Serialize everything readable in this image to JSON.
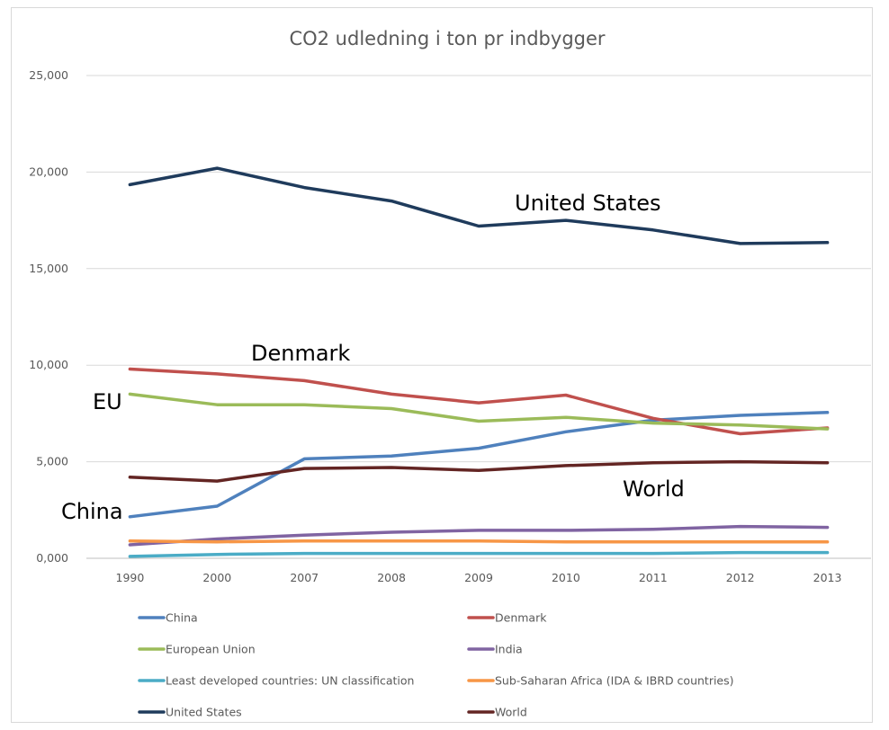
{
  "chart_data": {
    "type": "line",
    "title": "CO2 udledning i ton pr indbygger",
    "xlabel": "",
    "ylabel": "",
    "categories": [
      "1990",
      "2000",
      "2007",
      "2008",
      "2009",
      "2010",
      "2011",
      "2012",
      "2013"
    ],
    "y_ticks": [
      "0,000",
      "5,000",
      "10,000",
      "15,000",
      "20,000",
      "25,000"
    ],
    "ylim": [
      0,
      25
    ],
    "grid": true,
    "legend_position": "bottom",
    "series": [
      {
        "name": "China",
        "color": "#4f81bd",
        "values": [
          2.15,
          2.7,
          5.15,
          5.3,
          5.7,
          6.55,
          7.15,
          7.4,
          7.55
        ]
      },
      {
        "name": "Denmark",
        "color": "#c0504d",
        "values": [
          9.8,
          9.55,
          9.2,
          8.5,
          8.05,
          8.45,
          7.25,
          6.45,
          6.75
        ]
      },
      {
        "name": "European Union",
        "color": "#9bbb59",
        "values": [
          8.5,
          7.95,
          7.95,
          7.75,
          7.1,
          7.3,
          7.0,
          6.9,
          6.7
        ]
      },
      {
        "name": "India",
        "color": "#8064a2",
        "values": [
          0.7,
          1.0,
          1.2,
          1.35,
          1.45,
          1.45,
          1.5,
          1.65,
          1.6
        ]
      },
      {
        "name": "Least developed countries: UN classification",
        "color": "#4bacc6",
        "values": [
          0.1,
          0.2,
          0.25,
          0.25,
          0.25,
          0.25,
          0.25,
          0.3,
          0.3
        ]
      },
      {
        "name": "Sub-Saharan Africa (IDA & IBRD countries)",
        "color": "#f79646",
        "values": [
          0.9,
          0.85,
          0.9,
          0.9,
          0.9,
          0.85,
          0.85,
          0.85,
          0.85
        ]
      },
      {
        "name": "United States",
        "color": "#1f3b5c",
        "values": [
          19.35,
          20.2,
          19.2,
          18.5,
          17.2,
          17.5,
          17.0,
          16.3,
          16.35
        ]
      },
      {
        "name": "World",
        "color": "#632523",
        "values": [
          4.2,
          4.0,
          4.65,
          4.7,
          4.55,
          4.8,
          4.95,
          5.0,
          4.95
        ]
      }
    ],
    "annotations": [
      "United States",
      "Denmark",
      "EU",
      "China",
      "World"
    ]
  }
}
